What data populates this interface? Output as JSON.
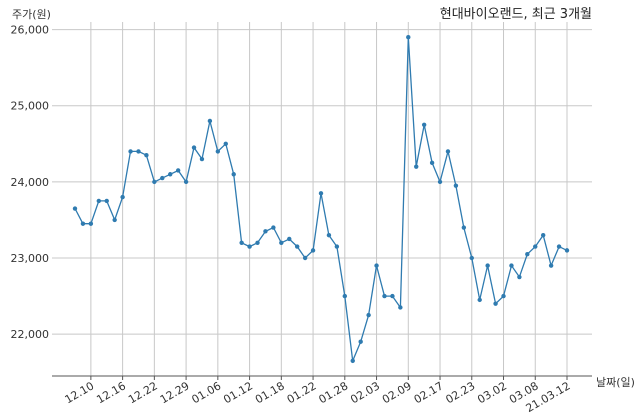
{
  "chart_data": {
    "type": "line",
    "title": "현대바이오랜드, 최근 3개월",
    "xlabel": "날짜(일)",
    "ylabel": "주가(원)",
    "ylim": [
      21450,
      26100
    ],
    "grid": true,
    "x_ticks": [
      "12.10",
      "12.16",
      "12.22",
      "12.29",
      "01.06",
      "01.12",
      "01.18",
      "01.22",
      "01.28",
      "02.03",
      "02.09",
      "02.17",
      "02.23",
      "03.02",
      "03.08",
      "21.03.12"
    ],
    "y_ticks": [
      "22,000",
      "23,000",
      "24,000",
      "25,000",
      "26,000"
    ],
    "y_tick_values": [
      22000,
      23000,
      24000,
      25000,
      26000
    ],
    "colors": {
      "line": "#2f7bb0",
      "grid": "#c8c8c8",
      "axis": "#555555"
    },
    "series": [
      {
        "values": [
          23650,
          23450,
          23450,
          23750,
          23750,
          23500,
          23800,
          24400,
          24400,
          24350,
          24000,
          24050,
          24100,
          24150,
          24000,
          24450,
          24300,
          24800,
          24400,
          24500,
          24100,
          23200,
          23150,
          23200,
          23350,
          23400,
          23200,
          23250,
          23150,
          23000,
          23100,
          23850,
          23300,
          23150,
          22500,
          21650,
          21900,
          22250,
          22900,
          22500,
          22500,
          22350,
          25900,
          24200,
          24750,
          24250,
          24000,
          24400,
          23950,
          23400,
          23000,
          22450,
          22900,
          22400,
          22500,
          22900,
          22750,
          23050,
          23150,
          23300,
          22900,
          23150,
          23100
        ]
      }
    ]
  }
}
